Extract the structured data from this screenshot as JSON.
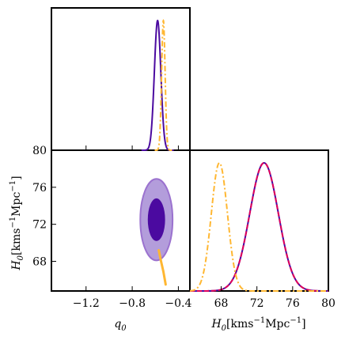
{
  "colors": {
    "purple": "#4b0aa0",
    "purple_light": "#b39ddb",
    "purple_mid": "#9b72cf",
    "orange": "#ffb732",
    "red": "#e0005a",
    "frame": "#000000"
  },
  "chart_data": [
    {
      "type": "line",
      "panel": "q0-marginal",
      "xlim": [
        -1.5,
        -0.3
      ],
      "series": [
        {
          "mean": -0.58,
          "sigma": 0.028,
          "style": "solid",
          "color_key": "purple"
        },
        {
          "mean": -0.53,
          "sigma": 0.015,
          "style": "dashdot",
          "color_key": "orange"
        }
      ]
    },
    {
      "type": "scatter",
      "panel": "joint-contours",
      "xlabel": "q",
      "xlabel_sub": "0",
      "ylabel": "H",
      "ylabel_sub": "0",
      "ylabel_units": "[kms",
      "ylabel_units_sup": "−1",
      "ylabel_units_tail": "Mpc",
      "ylabel_units_sup2": "−1",
      "ylabel_units_end": "]",
      "xlim": [
        -1.5,
        -0.3
      ],
      "ylim": [
        64.8,
        80
      ],
      "xticks": [
        "−1.2",
        "−0.8",
        "−0.4"
      ],
      "xtick_values": [
        -1.2,
        -0.8,
        -0.4
      ],
      "yticks": [
        "80",
        "76",
        "72",
        "68"
      ],
      "ytick_values": [
        80,
        76,
        72,
        68
      ],
      "ellipses": [
        {
          "cx": -0.59,
          "cy": 72.5,
          "rx": 0.14,
          "ry": 4.4,
          "color_key": "purple_light"
        },
        {
          "cx": -0.59,
          "cy": 72.5,
          "rx": 0.075,
          "ry": 2.3,
          "color_key": "purple"
        }
      ],
      "orange_track": {
        "x": [
          -0.57,
          -0.55,
          -0.53,
          -0.51
        ],
        "y": [
          69.2,
          68.0,
          66.9,
          65.5
        ]
      }
    },
    {
      "type": "line",
      "panel": "H0-marginal",
      "xlabel": "H",
      "xlabel_sub": "0",
      "xlabel_units": "[kms",
      "xlabel_units_sup": "−1",
      "xlabel_units_tail": "Mpc",
      "xlabel_units_sup2": "−1",
      "xlabel_units_end": "]",
      "xlim": [
        64.5,
        80
      ],
      "xticks": [
        "68",
        "72",
        "76",
        "80"
      ],
      "xtick_values": [
        68,
        72,
        76,
        80
      ],
      "series": [
        {
          "mean": 72.8,
          "sigma": 1.6,
          "style": "solid",
          "color_key": "purple"
        },
        {
          "mean": 72.8,
          "sigma": 1.6,
          "style": "dashed",
          "color_key": "red"
        },
        {
          "mean": 67.8,
          "sigma": 0.9,
          "style": "dashdot",
          "color_key": "orange"
        }
      ]
    }
  ]
}
